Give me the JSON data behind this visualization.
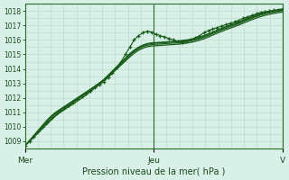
{
  "xlabel": "Pression niveau de la mer( hPa )",
  "bg_color": "#d8f0e8",
  "grid_color_major": "#b8d8c0",
  "grid_color_minor": "#cce8d4",
  "line_color_dark": "#1a5c1a",
  "line_color_mid": "#2a7a2a",
  "ylim": [
    1008.5,
    1018.5
  ],
  "yticks": [
    1009,
    1010,
    1011,
    1012,
    1013,
    1014,
    1015,
    1016,
    1017,
    1018
  ],
  "xtick_labels": [
    "Mer",
    "Jeu",
    "V"
  ],
  "xtick_positions": [
    0.0,
    0.5,
    1.0
  ],
  "num_points": 60,
  "series_marker": [
    1008.7,
    1009.0,
    1009.3,
    1009.7,
    1010.0,
    1010.3,
    1010.6,
    1010.9,
    1011.1,
    1011.3,
    1011.5,
    1011.7,
    1011.9,
    1012.1,
    1012.3,
    1012.5,
    1012.7,
    1012.9,
    1013.1,
    1013.4,
    1013.7,
    1014.1,
    1014.5,
    1015.0,
    1015.5,
    1016.0,
    1016.3,
    1016.5,
    1016.6,
    1016.55,
    1016.4,
    1016.3,
    1016.2,
    1016.1,
    1016.0,
    1015.9,
    1015.85,
    1015.9,
    1016.0,
    1016.15,
    1016.3,
    1016.5,
    1016.65,
    1016.75,
    1016.85,
    1016.95,
    1017.05,
    1017.15,
    1017.25,
    1017.35,
    1017.5,
    1017.6,
    1017.7,
    1017.8,
    1017.9,
    1017.95,
    1018.0,
    1018.05,
    1018.1,
    1018.15
  ],
  "series_smooth": [
    [
      1008.7,
      1009.05,
      1009.4,
      1009.75,
      1010.1,
      1010.45,
      1010.75,
      1011.0,
      1011.2,
      1011.4,
      1011.6,
      1011.8,
      1012.0,
      1012.2,
      1012.4,
      1012.6,
      1012.8,
      1013.0,
      1013.25,
      1013.55,
      1013.85,
      1014.15,
      1014.45,
      1014.75,
      1015.05,
      1015.3,
      1015.5,
      1015.65,
      1015.75,
      1015.8,
      1015.82,
      1015.84,
      1015.86,
      1015.88,
      1015.9,
      1015.93,
      1015.97,
      1016.0,
      1016.05,
      1016.12,
      1016.2,
      1016.3,
      1016.42,
      1016.55,
      1016.68,
      1016.8,
      1016.92,
      1017.03,
      1017.14,
      1017.25,
      1017.38,
      1017.5,
      1017.62,
      1017.73,
      1017.83,
      1017.9,
      1017.96,
      1018.0,
      1018.05,
      1018.1
    ],
    [
      1008.7,
      1009.0,
      1009.35,
      1009.7,
      1010.05,
      1010.4,
      1010.7,
      1010.95,
      1011.18,
      1011.38,
      1011.58,
      1011.78,
      1011.98,
      1012.18,
      1012.38,
      1012.58,
      1012.78,
      1012.98,
      1013.22,
      1013.5,
      1013.8,
      1014.1,
      1014.4,
      1014.7,
      1015.0,
      1015.25,
      1015.45,
      1015.6,
      1015.7,
      1015.75,
      1015.78,
      1015.8,
      1015.82,
      1015.84,
      1015.86,
      1015.88,
      1015.92,
      1015.96,
      1016.0,
      1016.07,
      1016.15,
      1016.25,
      1016.37,
      1016.5,
      1016.63,
      1016.75,
      1016.87,
      1016.98,
      1017.09,
      1017.2,
      1017.33,
      1017.45,
      1017.57,
      1017.68,
      1017.78,
      1017.86,
      1017.92,
      1017.97,
      1018.02,
      1018.07
    ],
    [
      1008.7,
      1009.0,
      1009.3,
      1009.6,
      1009.9,
      1010.2,
      1010.5,
      1010.78,
      1011.02,
      1011.24,
      1011.46,
      1011.68,
      1011.9,
      1012.12,
      1012.35,
      1012.58,
      1012.8,
      1013.02,
      1013.25,
      1013.52,
      1013.8,
      1014.08,
      1014.36,
      1014.64,
      1014.92,
      1015.18,
      1015.38,
      1015.53,
      1015.63,
      1015.68,
      1015.7,
      1015.72,
      1015.74,
      1015.76,
      1015.78,
      1015.8,
      1015.84,
      1015.88,
      1015.93,
      1016.0,
      1016.08,
      1016.18,
      1016.3,
      1016.43,
      1016.56,
      1016.68,
      1016.8,
      1016.91,
      1017.02,
      1017.13,
      1017.26,
      1017.38,
      1017.5,
      1017.61,
      1017.71,
      1017.8,
      1017.87,
      1017.93,
      1017.98,
      1018.03
    ],
    [
      1008.7,
      1008.98,
      1009.28,
      1009.58,
      1009.88,
      1010.18,
      1010.48,
      1010.75,
      1010.98,
      1011.18,
      1011.38,
      1011.58,
      1011.78,
      1011.98,
      1012.2,
      1012.44,
      1012.68,
      1012.92,
      1013.16,
      1013.42,
      1013.7,
      1013.98,
      1014.26,
      1014.54,
      1014.82,
      1015.08,
      1015.28,
      1015.43,
      1015.53,
      1015.58,
      1015.6,
      1015.62,
      1015.64,
      1015.66,
      1015.68,
      1015.7,
      1015.74,
      1015.78,
      1015.83,
      1015.9,
      1015.98,
      1016.08,
      1016.2,
      1016.33,
      1016.46,
      1016.58,
      1016.7,
      1016.81,
      1016.92,
      1017.03,
      1017.16,
      1017.28,
      1017.4,
      1017.51,
      1017.61,
      1017.7,
      1017.77,
      1017.83,
      1017.88,
      1017.93
    ]
  ]
}
